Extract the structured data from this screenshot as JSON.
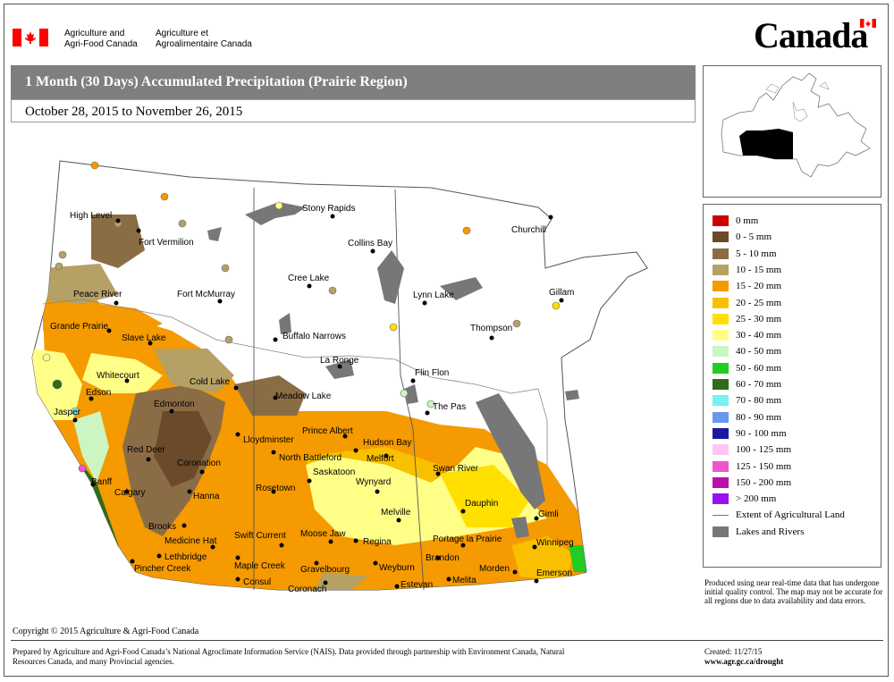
{
  "header": {
    "dept_en_1": "Agriculture and",
    "dept_en_2": "Agri-Food Canada",
    "dept_fr_1": "Agriculture et",
    "dept_fr_2": "Agroalimentaire Canada",
    "wordmark": "Canada",
    "flag_red": "#ff0000"
  },
  "title": "1 Month (30 Days) Accumulated Precipitation (Prairie Region)",
  "date_range": "October 28, 2015 to November 26, 2015",
  "legend": [
    {
      "label": "0 mm",
      "color": "#cc0000"
    },
    {
      "label": "0 - 5 mm",
      "color": "#6b4a2b"
    },
    {
      "label": "5 - 10 mm",
      "color": "#8b6d45"
    },
    {
      "label": "10 - 15 mm",
      "color": "#b5a066"
    },
    {
      "label": "15 - 20 mm",
      "color": "#f59a00"
    },
    {
      "label": "20 - 25 mm",
      "color": "#f8c000"
    },
    {
      "label": "25 - 30 mm",
      "color": "#ffe000"
    },
    {
      "label": "30 - 40 mm",
      "color": "#ffff88"
    },
    {
      "label": "40 - 50 mm",
      "color": "#ccf5c2"
    },
    {
      "label": "50 - 60 mm",
      "color": "#22cc22"
    },
    {
      "label": "60 - 70 mm",
      "color": "#2e6b1a"
    },
    {
      "label": "70 - 80 mm",
      "color": "#77f0f0"
    },
    {
      "label": "80 - 90 mm",
      "color": "#6699ee"
    },
    {
      "label": "90 - 100 mm",
      "color": "#1a1aa0"
    },
    {
      "label": "100 - 125 mm",
      "color": "#ffc6f0"
    },
    {
      "label": "125 - 150 mm",
      "color": "#ee55cc"
    },
    {
      "label": "150 - 200 mm",
      "color": "#bb11aa"
    },
    {
      "label": "> 200 mm",
      "color": "#9a10f0"
    }
  ],
  "legend_extra": {
    "agri_land_label": "Extent of Agricultural Land",
    "lakes_label": "Lakes and Rivers",
    "lakes_color": "#777777"
  },
  "disclaimer": "Produced using near real-time data that has undergone initial quality control.  The map may not be accurate for all regions due to data availability and data errors.",
  "cities": [
    {
      "name": "High Level"
    },
    {
      "name": "Fort Vermilion"
    },
    {
      "name": "Stony Rapids"
    },
    {
      "name": "Collins Bay"
    },
    {
      "name": "Churchill"
    },
    {
      "name": "Peace River"
    },
    {
      "name": "Fort McMurray"
    },
    {
      "name": "Cree Lake"
    },
    {
      "name": "Lynn Lake"
    },
    {
      "name": "Gillam"
    },
    {
      "name": "Grande Prairie"
    },
    {
      "name": "Slave Lake"
    },
    {
      "name": "Buffalo Narrows"
    },
    {
      "name": "Thompson"
    },
    {
      "name": "Whitecourt"
    },
    {
      "name": "La Ronge"
    },
    {
      "name": "Flin Flon"
    },
    {
      "name": "Cold Lake"
    },
    {
      "name": "Edson"
    },
    {
      "name": "Meadow Lake"
    },
    {
      "name": "Edmonton"
    },
    {
      "name": "Jasper"
    },
    {
      "name": "The Pas"
    },
    {
      "name": "Prince Albert"
    },
    {
      "name": "Lloydminster"
    },
    {
      "name": "Hudson Bay"
    },
    {
      "name": "Red Deer"
    },
    {
      "name": "North Battleford"
    },
    {
      "name": "Melfort"
    },
    {
      "name": "Coronation"
    },
    {
      "name": "Saskatoon"
    },
    {
      "name": "Swan River"
    },
    {
      "name": "Banff"
    },
    {
      "name": "Wynyard"
    },
    {
      "name": "Hanna"
    },
    {
      "name": "Rosetown"
    },
    {
      "name": "Calgary"
    },
    {
      "name": "Dauphin"
    },
    {
      "name": "Melville"
    },
    {
      "name": "Brooks"
    },
    {
      "name": "Gimli"
    },
    {
      "name": "Swift Current"
    },
    {
      "name": "Moose Jaw"
    },
    {
      "name": "Medicine Hat"
    },
    {
      "name": "Regina"
    },
    {
      "name": "Portage la Prairie"
    },
    {
      "name": "Winnipeg"
    },
    {
      "name": "Lethbridge"
    },
    {
      "name": "Brandon"
    },
    {
      "name": "Pincher Creek"
    },
    {
      "name": "Maple Creek"
    },
    {
      "name": "Gravelbourg"
    },
    {
      "name": "Weyburn"
    },
    {
      "name": "Morden"
    },
    {
      "name": "Emerson"
    },
    {
      "name": "Consul"
    },
    {
      "name": "Melita"
    },
    {
      "name": "Estevan"
    },
    {
      "name": "Coronach"
    }
  ],
  "footer": {
    "copyright": "Copyright © 2015 Agriculture & Agri-Food Canada",
    "prepared": "Prepared by Agriculture and Agri-Food Canada’s National Agroclimate Information Service (NAIS).   Data provided through partnership with Environment Canada, Natural Resources Canada, and many Provincial agencies.",
    "created": "Created: 11/27/15",
    "url": "www.agr.gc.ca/drought"
  }
}
